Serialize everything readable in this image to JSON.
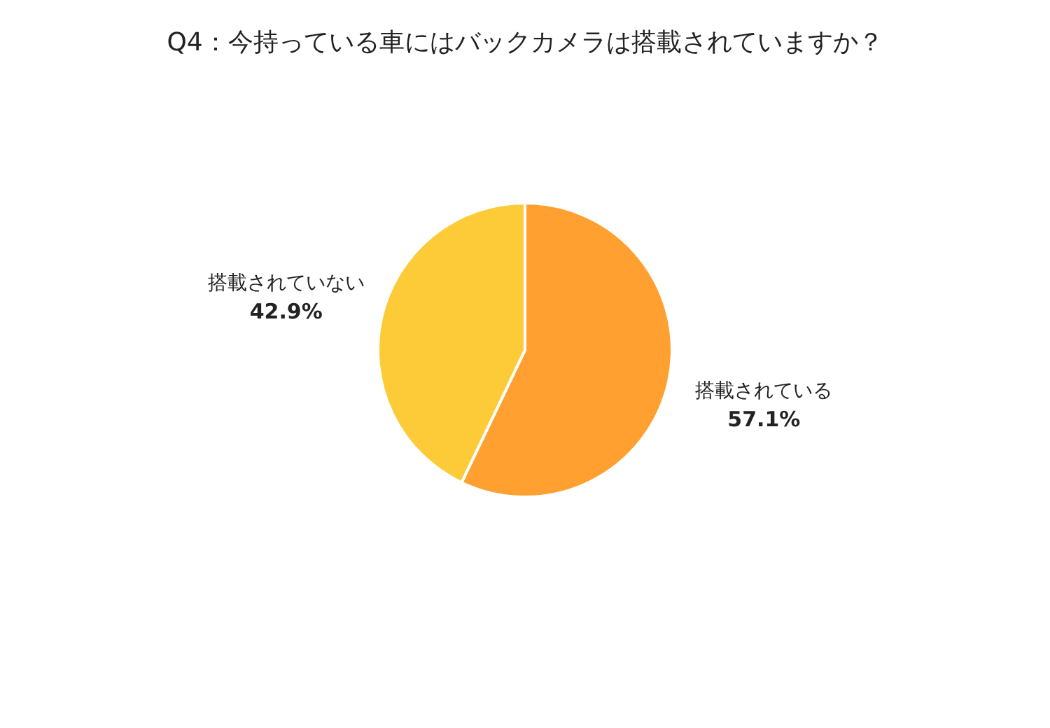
{
  "chart_data": {
    "type": "pie",
    "title": "Q4：今持っている車にはバックカメラは搭載されていますか？",
    "categories": [
      "搭載されている",
      "搭載されていない"
    ],
    "values": [
      57.1,
      42.9
    ],
    "colors": [
      "#ffa030",
      "#fdcb38"
    ],
    "value_labels": [
      "57.1%",
      "42.9%"
    ],
    "legend": false
  }
}
